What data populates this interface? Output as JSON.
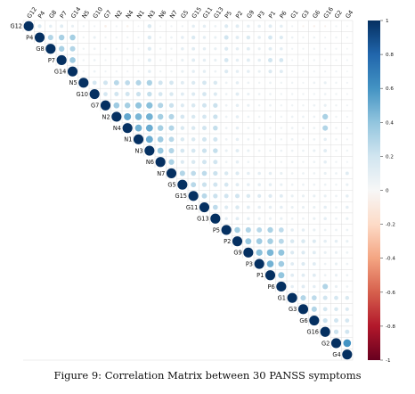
{
  "caption": "Figure 9: Correlation Matrix between 30 PANSS symptoms",
  "chart_data": {
    "type": "heatmap",
    "variables": [
      "G12",
      "P4",
      "G8",
      "P7",
      "G14",
      "N5",
      "G10",
      "G7",
      "N2",
      "N4",
      "N1",
      "N3",
      "N6",
      "N7",
      "G5",
      "G15",
      "G11",
      "G13",
      "P5",
      "P2",
      "G9",
      "P3",
      "P1",
      "P6",
      "G1",
      "G3",
      "G6",
      "G16",
      "G2",
      "G4"
    ],
    "layout": "upper-triangle correlation circles",
    "legend": {
      "ticks": [
        1,
        0.8,
        0.6,
        0.4,
        0.2,
        0,
        -0.2,
        -0.4,
        -0.6,
        -0.8,
        -1
      ],
      "range": [
        -1,
        1
      ],
      "colors": {
        "positive": "#053061",
        "mid": "#f7f7f7",
        "negative": "#67001f"
      }
    },
    "grid": true,
    "note": "values are approximate readings of circle size and color",
    "base_values": {
      "G12": {
        "P4": 0.15,
        "G8": 0.1,
        "P7": 0.12,
        "G14": 0.08,
        "N5": 0.05,
        "G10": 0.04,
        "G7": -0.06,
        "N2": 0.04,
        "N4": -0.05,
        "N1": 0.03,
        "N3": 0.16,
        "N6": 0.03,
        "N7": 0.04,
        "G5": 0.05,
        "G15": 0.1,
        "G11": 0.1,
        "G13": 0.06,
        "P5": 0.14,
        "P2": 0.12,
        "G9": 0.1,
        "P3": 0.1,
        "P1": 0.12,
        "P6": 0.1,
        "G1": 0.04,
        "G3": -0.04,
        "G6": -0.05,
        "G16": -0.04,
        "G2": 0.04,
        "G4": 0.03
      },
      "P4": {
        "G8": 0.3,
        "P7": 0.33,
        "G14": 0.34,
        "N5": 0.05,
        "G10": 0.08,
        "G7": 0.05,
        "N2": 0.05,
        "N4": 0.05,
        "N1": 0.04,
        "N3": 0.15,
        "N6": 0.05,
        "N7": 0.06,
        "G5": 0.1,
        "G15": 0.15,
        "G11": 0.1,
        "G13": 0.08,
        "P5": 0.2,
        "P2": 0.12,
        "G9": 0.16,
        "P3": 0.1,
        "P1": 0.18,
        "P6": 0.14,
        "G1": 0.06,
        "G3": 0.05,
        "G6": 0.06,
        "G16": 0.04,
        "G2": 0.05,
        "G4": 0.04
      },
      "G8": {
        "P7": 0.33,
        "G14": 0.3,
        "N5": 0.05,
        "G10": 0.06,
        "G7": 0.04,
        "N2": 0.04,
        "N4": 0.05,
        "N1": 0.04,
        "N3": 0.14,
        "N6": 0.05,
        "N7": 0.05,
        "G5": 0.1,
        "G15": 0.12,
        "G11": 0.1,
        "G13": 0.08,
        "P5": 0.14,
        "P2": 0.1,
        "G9": 0.12,
        "P3": 0.08,
        "P1": 0.12,
        "P6": 0.1,
        "G1": 0.04,
        "G3": 0.04,
        "G6": 0.05,
        "G16": 0.04,
        "G2": 0.04,
        "G4": 0.03
      },
      "P7": {
        "G14": 0.36,
        "N5": 0.05,
        "G10": 0.06,
        "G7": 0.04,
        "N2": 0.04,
        "N4": 0.05,
        "N1": 0.04,
        "N3": 0.12,
        "N6": 0.05,
        "N7": 0.05,
        "G5": 0.08,
        "G15": 0.12,
        "G11": 0.1,
        "G13": 0.08,
        "P5": 0.18,
        "P2": 0.1,
        "G9": 0.12,
        "P3": 0.1,
        "P1": 0.2,
        "P6": 0.18,
        "G1": 0.04,
        "G3": 0.04,
        "G6": 0.05,
        "G16": 0.04,
        "G2": 0.04,
        "G4": 0.04
      },
      "G14": {
        "N5": 0.05,
        "G10": 0.06,
        "G7": 0.04,
        "N2": 0.04,
        "N4": 0.04,
        "N1": 0.04,
        "N3": 0.1,
        "N6": 0.05,
        "N7": 0.05,
        "G5": 0.08,
        "G15": 0.1,
        "G11": 0.1,
        "G13": 0.06,
        "P5": 0.14,
        "P2": 0.1,
        "G9": 0.1,
        "P3": 0.08,
        "P1": 0.14,
        "P6": 0.12,
        "G1": 0.04,
        "G3": 0.04,
        "G6": 0.04,
        "G16": 0.04,
        "G2": 0.04,
        "G4": 0.03
      },
      "N5": {
        "G10": 0.18,
        "G7": 0.2,
        "N2": 0.28,
        "N4": 0.26,
        "N1": 0.3,
        "N3": 0.32,
        "N6": 0.2,
        "N7": 0.18,
        "G5": 0.12,
        "G15": 0.15,
        "G11": 0.18,
        "G13": 0.16,
        "P5": 0.06,
        "P2": 0.1,
        "G9": 0.06,
        "P3": 0.05,
        "P1": 0.06,
        "P6": 0.05,
        "G1": 0.05,
        "G3": 0.04,
        "G6": 0.06,
        "G16": 0.08,
        "G2": 0.05,
        "G4": 0.04
      },
      "G10": {
        "G7": 0.18,
        "N2": 0.2,
        "N4": 0.2,
        "N1": 0.22,
        "N3": 0.24,
        "N6": 0.18,
        "N7": 0.16,
        "G5": 0.12,
        "G15": 0.14,
        "G11": 0.18,
        "G13": 0.14,
        "P5": 0.06,
        "P2": 0.12,
        "G9": 0.08,
        "P3": 0.06,
        "P1": 0.06,
        "P6": 0.05,
        "G1": 0.05,
        "G3": 0.05,
        "G6": 0.05,
        "G16": 0.06,
        "G2": 0.05,
        "G4": 0.04
      },
      "G7": {
        "N2": 0.36,
        "N4": 0.34,
        "N1": 0.4,
        "N3": 0.42,
        "N6": 0.3,
        "N7": 0.22,
        "G5": 0.14,
        "G15": 0.16,
        "G11": 0.2,
        "G13": 0.22,
        "P5": 0.06,
        "P2": 0.1,
        "G9": 0.08,
        "P3": 0.05,
        "P1": 0.06,
        "P6": 0.05,
        "G1": 0.05,
        "G3": 0.05,
        "G6": 0.06,
        "G16": 0.08,
        "G2": 0.05,
        "G4": 0.04
      },
      "N2": {
        "N4": 0.52,
        "N1": 0.46,
        "N3": 0.48,
        "N6": 0.34,
        "N7": 0.3,
        "G5": 0.18,
        "G15": 0.16,
        "G11": 0.18,
        "G13": 0.22,
        "P5": 0.06,
        "P2": 0.1,
        "G9": 0.06,
        "P3": 0.05,
        "P1": 0.05,
        "P6": 0.05,
        "G1": 0.06,
        "G3": 0.06,
        "G6": 0.06,
        "G16": 0.32,
        "G2": 0.05,
        "G4": 0.04
      },
      "N4": {
        "N1": 0.48,
        "N3": 0.5,
        "N6": 0.34,
        "N7": 0.3,
        "G5": 0.16,
        "G15": 0.16,
        "G11": 0.2,
        "G13": 0.24,
        "P5": 0.06,
        "P2": 0.1,
        "G9": 0.06,
        "P3": 0.05,
        "P1": 0.05,
        "P6": 0.05,
        "G1": 0.06,
        "G3": 0.06,
        "G6": 0.06,
        "G16": 0.3,
        "G2": 0.05,
        "G4": 0.04
      },
      "N1": {
        "N3": 0.5,
        "N6": 0.36,
        "N7": 0.28,
        "G5": 0.16,
        "G15": 0.16,
        "G11": 0.2,
        "G13": 0.2,
        "P5": 0.06,
        "P2": 0.1,
        "G9": 0.06,
        "P3": 0.05,
        "P1": 0.05,
        "P6": 0.05,
        "G1": 0.06,
        "G3": 0.05,
        "G6": 0.06,
        "G16": 0.1,
        "G2": 0.05,
        "G4": 0.04
      },
      "N3": {
        "N6": 0.38,
        "N7": 0.3,
        "G5": 0.18,
        "G15": 0.18,
        "G11": 0.22,
        "G13": 0.24,
        "P5": 0.08,
        "P2": 0.12,
        "G9": 0.08,
        "P3": 0.06,
        "P1": 0.06,
        "P6": 0.06,
        "G1": 0.06,
        "G3": 0.06,
        "G6": 0.08,
        "G16": 0.12,
        "G2": 0.05,
        "G4": 0.05
      },
      "N6": {
        "N7": 0.32,
        "G5": 0.14,
        "G15": 0.16,
        "G11": 0.2,
        "G13": 0.2,
        "P5": 0.06,
        "P2": 0.1,
        "G9": 0.06,
        "P3": 0.05,
        "P1": 0.05,
        "P6": 0.05,
        "G1": 0.06,
        "G3": 0.05,
        "G6": 0.06,
        "G16": 0.1,
        "G2": 0.05,
        "G4": 0.04
      },
      "N7": {
        "G5": 0.3,
        "G15": 0.26,
        "G11": 0.26,
        "G13": 0.22,
        "P5": 0.16,
        "P2": 0.14,
        "G9": 0.1,
        "P3": 0.1,
        "P1": 0.1,
        "P6": 0.08,
        "G1": 0.06,
        "G3": 0.06,
        "G6": 0.06,
        "G16": 0.08,
        "G2": 0.06,
        "G4": 0.12
      },
      "G5": {
        "G15": 0.28,
        "G11": 0.22,
        "G13": 0.2,
        "P5": 0.18,
        "P2": 0.12,
        "G9": 0.1,
        "P3": 0.1,
        "P1": 0.1,
        "P6": 0.08,
        "G1": 0.06,
        "G3": 0.06,
        "G6": 0.06,
        "G16": 0.06,
        "G2": 0.05,
        "G4": 0.08
      },
      "G15": {
        "G11": 0.28,
        "G13": 0.22,
        "P5": 0.2,
        "P2": 0.2,
        "G9": 0.16,
        "P3": 0.14,
        "P1": 0.14,
        "P6": 0.12,
        "G1": 0.08,
        "G3": 0.08,
        "G6": 0.08,
        "G16": 0.08,
        "G2": 0.06,
        "G4": 0.1
      },
      "G11": {
        "G13": 0.26,
        "P5": 0.14,
        "P2": 0.16,
        "G9": 0.12,
        "P3": 0.1,
        "P1": 0.1,
        "P6": 0.1,
        "G1": 0.08,
        "G3": 0.08,
        "G6": 0.08,
        "G16": 0.1,
        "G2": 0.06,
        "G4": 0.1
      },
      "G13": {
        "P5": 0.1,
        "P2": 0.12,
        "G9": 0.1,
        "P3": 0.08,
        "P1": 0.08,
        "P6": 0.08,
        "G1": 0.06,
        "G3": 0.06,
        "G6": 0.08,
        "G16": 0.1,
        "G2": 0.06,
        "G4": 0.08
      },
      "P5": {
        "P2": 0.34,
        "G9": 0.3,
        "P3": 0.28,
        "P1": 0.32,
        "P6": 0.26,
        "G1": 0.1,
        "G3": 0.1,
        "G6": 0.08,
        "G16": 0.06,
        "G2": 0.06,
        "G4": 0.06
      },
      "P2": {
        "G9": 0.38,
        "P3": 0.36,
        "P1": 0.34,
        "P6": 0.28,
        "G1": 0.16,
        "G3": 0.16,
        "G6": 0.14,
        "G16": 0.1,
        "G2": 0.1,
        "G4": 0.08
      },
      "G9": {
        "P3": 0.42,
        "P1": 0.46,
        "P6": 0.4,
        "G1": 0.14,
        "G3": 0.14,
        "G6": 0.12,
        "G16": 0.08,
        "G2": 0.08,
        "G4": 0.06
      },
      "P3": {
        "P1": 0.48,
        "P6": 0.36,
        "G1": 0.12,
        "G3": 0.14,
        "G6": 0.12,
        "G16": 0.06,
        "G2": 0.08,
        "G4": 0.06
      },
      "P1": {
        "P6": 0.4,
        "G1": 0.12,
        "G3": 0.12,
        "G6": 0.12,
        "G16": 0.06,
        "G2": 0.08,
        "G4": 0.06
      },
      "P6": {
        "G1": 0.1,
        "G3": 0.12,
        "G6": 0.1,
        "G16": 0.3,
        "G2": 0.08,
        "G4": 0.06
      },
      "G1": {
        "G3": 0.3,
        "G6": 0.26,
        "G16": 0.2,
        "G2": 0.18,
        "G4": 0.16
      },
      "G3": {
        "G6": 0.3,
        "G16": 0.18,
        "G2": 0.16,
        "G4": 0.14
      },
      "G6": {
        "G16": 0.22,
        "G2": 0.2,
        "G4": 0.18
      },
      "G16": {
        "G2": 0.22,
        "G4": 0.2
      },
      "G2": {
        "G4": 0.6
      }
    }
  }
}
